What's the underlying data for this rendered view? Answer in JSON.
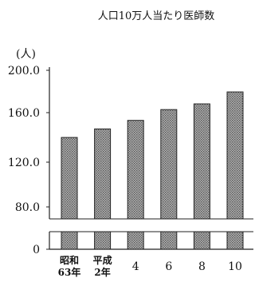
{
  "chart_data": {
    "type": "bar",
    "title": "人口10万人当たり医師数",
    "unit_label": "(人)",
    "categories": [
      [
        "昭和",
        "63年"
      ],
      [
        "平成",
        "2年"
      ],
      [
        "4"
      ],
      [
        "6"
      ],
      [
        "8"
      ],
      [
        "10"
      ]
    ],
    "values": [
      141.0,
      148.5,
      156.0,
      165.5,
      170.5,
      181.0
    ],
    "y_ticks": [
      "200.0",
      "160.0",
      "120.0",
      "80.0",
      "0"
    ],
    "ylim": [
      65,
      200
    ],
    "axis_break": true,
    "grid": false,
    "bar_fill": "#9a9a9a",
    "bar_stroke": "#222222"
  }
}
